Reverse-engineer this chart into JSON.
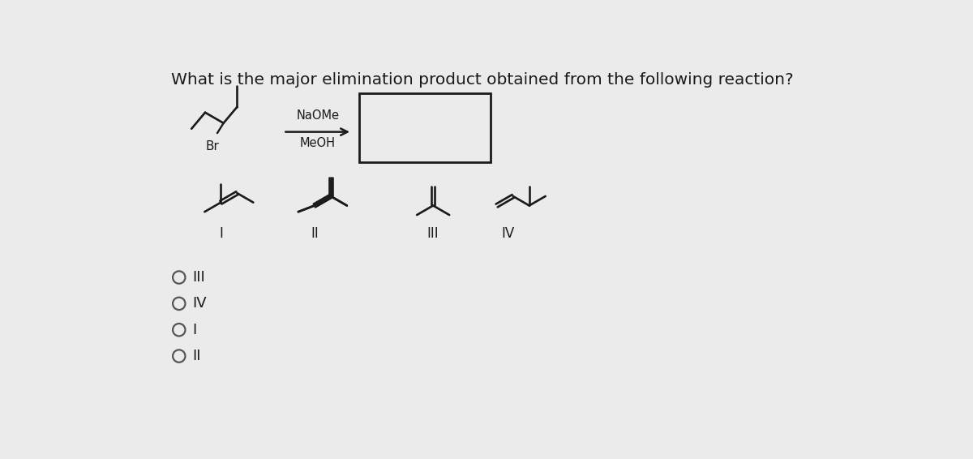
{
  "title": "What is the major elimination product obtained from the following reaction?",
  "background_color": "#ebebeb",
  "text_color": "#1a1a1a",
  "title_fontsize": 14.5,
  "reagent_line1": "NaOMe",
  "reagent_line2": "MeOH",
  "answer_choices": [
    "III",
    "IV",
    "I",
    "II"
  ]
}
